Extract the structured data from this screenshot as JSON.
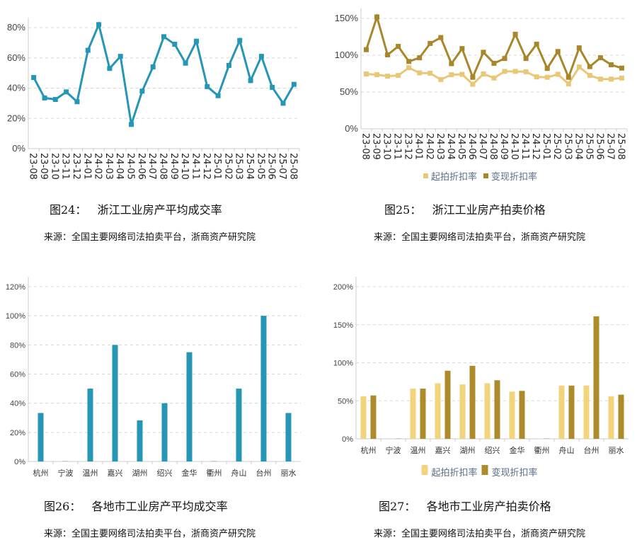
{
  "figures": [
    {
      "caption": "图24：   浙江工业房产平均成交率",
      "source": "来源：全国主要网络司法拍卖平台，浙商资产研究院"
    },
    {
      "caption": "图25：   浙江工业房产拍卖价格",
      "source": "来源：全国主要网络司法拍卖平台，浙商资产研究院"
    },
    {
      "caption": "图26：   各地市工业房产平均成交率",
      "source": "来源：全国主要网络司法拍卖平台，浙商资产研究院"
    },
    {
      "caption": "图27：   各地市工业房产拍卖价格",
      "source": "来源：全国主要网络司法拍卖平台，浙商资产研究院"
    }
  ],
  "chart_data": [
    {
      "type": "line",
      "x": [
        "23-08",
        "23-09",
        "23-10",
        "23-11",
        "23-12",
        "24-01",
        "24-02",
        "24-03",
        "24-04",
        "24-05",
        "24-06",
        "24-07",
        "24-08",
        "24-09",
        "24-10",
        "24-11",
        "24-12",
        "25-01",
        "25-02",
        "25-03",
        "25-04",
        "25-05",
        "25-06",
        "25-07",
        "25-08"
      ],
      "series": [
        {
          "values": [
            47,
            33.5,
            32.5,
            37.5,
            31,
            65,
            82,
            53,
            61,
            16,
            38,
            54,
            74,
            69,
            56.5,
            71,
            41,
            35,
            55,
            71.5,
            45,
            61,
            40.5,
            30,
            42.5
          ],
          "color": "#2596b5"
        }
      ],
      "ylim": [
        0,
        80
      ],
      "yticks": [
        "0%",
        "20%",
        "40%",
        "60%",
        "80%"
      ],
      "grid": true,
      "ylabel_unit": "%"
    },
    {
      "type": "line",
      "x": [
        "23-08",
        "23-09",
        "23-10",
        "23-11",
        "23-12",
        "24-01",
        "24-02",
        "24-03",
        "24-04",
        "24-05",
        "24-06",
        "24-07",
        "24-08",
        "24-09",
        "24-10",
        "24-11",
        "24-12",
        "25-01",
        "25-02",
        "25-03",
        "25-04",
        "25-05",
        "25-06",
        "25-07",
        "25-08"
      ],
      "series": [
        {
          "name": "起拍折扣率",
          "color": "#e8c878",
          "values": [
            74.5,
            73.5,
            71.5,
            72.5,
            83,
            76,
            75.5,
            67,
            73.5,
            74,
            60.5,
            74.5,
            69,
            78,
            78,
            77.5,
            70.5,
            70,
            74,
            61,
            84,
            72.5,
            67.5,
            67.5,
            69
          ]
        },
        {
          "name": "变现折扣率",
          "color": "#a8862a",
          "values": [
            107.5,
            152,
            100.5,
            112,
            91.5,
            96.5,
            116,
            124,
            88.5,
            109,
            70,
            104,
            89,
            95.5,
            128.5,
            95.5,
            115,
            82,
            105,
            70,
            110,
            84.5,
            96.5,
            87,
            82.5
          ]
        }
      ],
      "ylim": [
        0,
        150
      ],
      "yticks": [
        "0%",
        "50%",
        "100%",
        "150%"
      ],
      "grid": true,
      "legend": "bottom"
    },
    {
      "type": "bar",
      "categories": [
        "杭州",
        "宁波",
        "温州",
        "嘉兴",
        "湖州",
        "绍兴",
        "金华",
        "衢州",
        "舟山",
        "台州",
        "丽水"
      ],
      "series": [
        {
          "values": [
            33.3,
            0,
            50,
            80,
            28.2,
            40,
            75,
            0,
            50,
            100,
            33.3
          ],
          "color": "#2596b5"
        }
      ],
      "ylim": [
        0,
        120
      ],
      "yticks": [
        "0%",
        "20%",
        "40%",
        "60%",
        "80%",
        "100%",
        "120%"
      ],
      "grid": true
    },
    {
      "type": "bar",
      "categories": [
        "杭州",
        "宁波",
        "温州",
        "嘉兴",
        "湖州",
        "绍兴",
        "金华",
        "衢州",
        "舟山",
        "台州",
        "丽水"
      ],
      "series": [
        {
          "name": "起拍折扣率",
          "color": "#f2d47c",
          "values": [
            56,
            0,
            66,
            73,
            71.5,
            73,
            62,
            0,
            70,
            70,
            56
          ]
        },
        {
          "name": "变现折扣率",
          "color": "#ad8a2a",
          "values": [
            57,
            0,
            66,
            89.5,
            96,
            77,
            63,
            0,
            70,
            161,
            58
          ]
        }
      ],
      "ylim": [
        0,
        200
      ],
      "yticks": [
        "0%",
        "50%",
        "100%",
        "150%",
        "200%"
      ],
      "grid": true,
      "legend": "bottom"
    }
  ]
}
